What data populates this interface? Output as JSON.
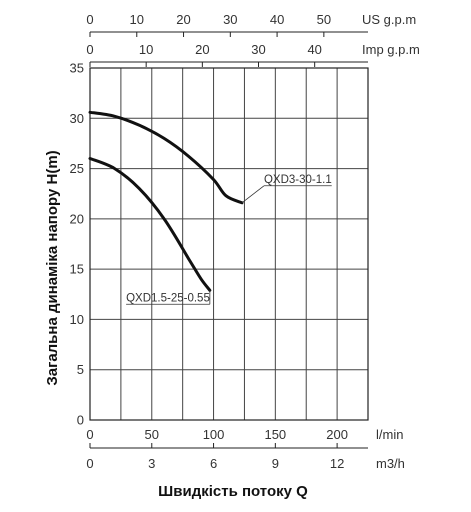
{
  "chart_data": {
    "type": "line",
    "title": "",
    "xlabel": "Швидкість потоку Q",
    "ylabel": "Загальна динаміка напору H(m)",
    "ylim": [
      0,
      35
    ],
    "yticks": [
      "0",
      "5",
      "10",
      "15",
      "20",
      "25",
      "30",
      "35"
    ],
    "xlim_lmin": [
      0,
      225
    ],
    "grid": true,
    "axes": {
      "lmin": {
        "unit": "l/min",
        "ticks": [
          "0",
          "50",
          "100",
          "150",
          "200"
        ],
        "tick_values": [
          0,
          50,
          100,
          150,
          200
        ]
      },
      "m3h": {
        "unit": "m3/h",
        "ticks": [
          "0",
          "3",
          "6",
          "9",
          "12"
        ],
        "tick_values": [
          0,
          3,
          6,
          9,
          12
        ]
      },
      "us_gpm": {
        "unit": "US g.p.m",
        "ticks": [
          "0",
          "10",
          "20",
          "30",
          "40",
          "50"
        ],
        "tick_values": [
          0,
          10,
          20,
          30,
          40,
          50
        ]
      },
      "imp_gpm": {
        "unit": "Imp g.p.m",
        "ticks": [
          "0",
          "10",
          "20",
          "30",
          "40"
        ],
        "tick_values": [
          0,
          10,
          20,
          30,
          40
        ]
      }
    },
    "series": [
      {
        "name": "QXD3-30-1.1",
        "x_unit": "l/min",
        "x": [
          0,
          20,
          40,
          60,
          80,
          100,
          110,
          123
        ],
        "y": [
          30.6,
          30.2,
          29.3,
          28.0,
          26.2,
          23.9,
          22.3,
          21.6
        ]
      },
      {
        "name": "QXD1.5-25-0.55",
        "x_unit": "l/min",
        "x": [
          0,
          20,
          40,
          60,
          80,
          90,
          97
        ],
        "y": [
          26.0,
          25.0,
          23.0,
          20.0,
          16.0,
          14.0,
          12.9
        ]
      }
    ]
  }
}
